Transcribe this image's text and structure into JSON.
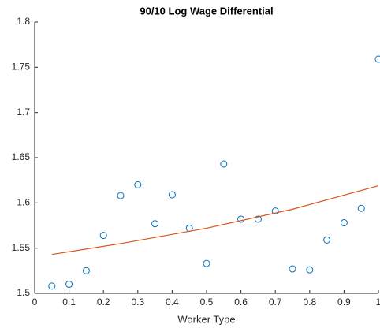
{
  "chart_data": {
    "type": "scatter",
    "title": "90/10 Log Wage Differential",
    "x_label": "Worker Type",
    "xlim": [
      0,
      1
    ],
    "ylim": [
      1.5,
      1.8
    ],
    "xticks": [
      0,
      0.1,
      0.2,
      0.3,
      0.4,
      0.5,
      0.6,
      0.7,
      0.8,
      0.9,
      1
    ],
    "yticks": [
      1.5,
      1.55,
      1.6,
      1.65,
      1.7,
      1.75,
      1.8
    ],
    "series": [
      {
        "kind": "markers",
        "color": "#0072BD",
        "x": [
          0.05,
          0.1,
          0.15,
          0.2,
          0.25,
          0.3,
          0.35,
          0.4,
          0.45,
          0.5,
          0.55,
          0.6,
          0.65,
          0.7,
          0.75,
          0.8,
          0.85,
          0.9,
          0.95,
          1
        ],
        "values": [
          1.508,
          1.51,
          1.525,
          1.564,
          1.608,
          1.62,
          1.577,
          1.609,
          1.572,
          1.533,
          1.643,
          1.582,
          1.582,
          1.591,
          1.527,
          1.526,
          1.559,
          1.578,
          1.594,
          1.759
        ]
      },
      {
        "kind": "line",
        "color": "#D95319",
        "x": [
          0.05,
          0.25,
          0.5,
          0.75,
          1
        ],
        "values": [
          1.543,
          1.555,
          1.572,
          1.593,
          1.619
        ]
      }
    ]
  }
}
